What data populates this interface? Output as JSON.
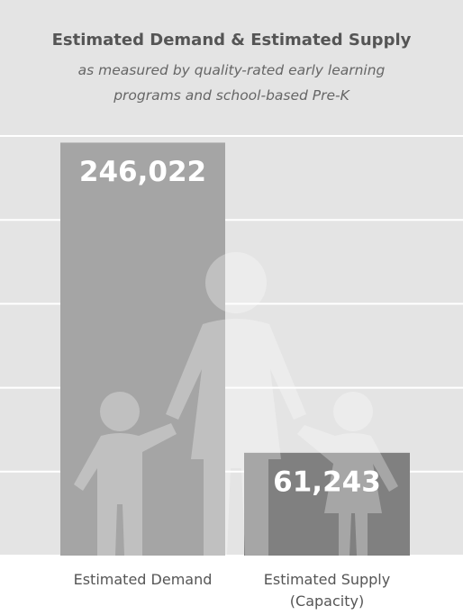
{
  "chart_data": {
    "type": "bar",
    "title": "Estimated Demand & Estimated Supply",
    "subtitle": "as measured by quality-rated early learning programs and school-based Pre-K",
    "categories": [
      "Estimated Demand",
      "Estimated Supply (Capacity)"
    ],
    "values": [
      246022,
      61243
    ],
    "value_labels": [
      "246,022",
      "61,243"
    ],
    "colors": [
      "#a5a5a5",
      "#808080"
    ],
    "ylim": [
      0,
      250000
    ],
    "yticks": [
      0,
      50000,
      100000,
      150000,
      200000,
      250000
    ],
    "grid": true
  }
}
